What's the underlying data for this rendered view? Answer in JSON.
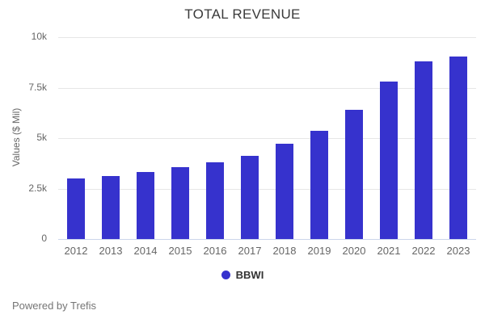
{
  "page": {
    "footer_text": "Powered by Trefis",
    "background": "#ffffff"
  },
  "chart_data": {
    "type": "bar",
    "title": "TOTAL REVENUE",
    "ylabel": "Values ($ Mil)",
    "xlabel": "",
    "categories": [
      "2012",
      "2013",
      "2014",
      "2015",
      "2016",
      "2017",
      "2018",
      "2019",
      "2020",
      "2021",
      "2022",
      "2023"
    ],
    "series": [
      {
        "name": "BBWI",
        "color": "#3632cd",
        "values": [
          3000,
          3100,
          3300,
          3550,
          3800,
          4100,
          4700,
          5350,
          6400,
          7800,
          8800,
          9050
        ]
      }
    ],
    "ylim": [
      0,
      10000
    ],
    "yticks": [
      {
        "value": 0,
        "label": "0"
      },
      {
        "value": 2500,
        "label": "2.5k"
      },
      {
        "value": 5000,
        "label": "5k"
      },
      {
        "value": 7500,
        "label": "7.5k"
      },
      {
        "value": 10000,
        "label": "10k"
      }
    ],
    "grid": true,
    "legend_position": "bottom",
    "colors": {
      "gridline": "#e6e6e6",
      "axis_line": "#ccd6eb",
      "tick_label": "#666666",
      "axis_title": "#666666",
      "chart_title": "#3a3a3a",
      "legend_text": "#333333",
      "footer_text": "#757575"
    }
  }
}
